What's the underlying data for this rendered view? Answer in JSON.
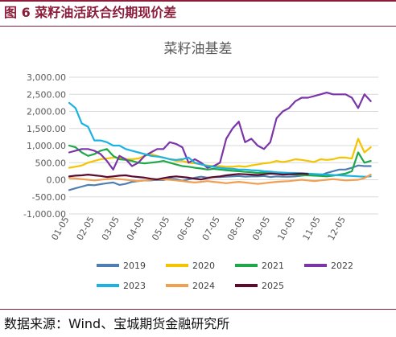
{
  "figure": {
    "title": "图 6 菜籽油活跃合约期现价差",
    "source": "数据来源：Wind、宝城期货金融研究所"
  },
  "colors": {
    "accent": "#8b1d3a",
    "gridline": "#d9d9d9",
    "axis_text": "#595959"
  },
  "chart_data": {
    "type": "line",
    "title": "菜籽油基差",
    "x_ticks": [
      "01-05",
      "02-05",
      "03-05",
      "04-05",
      "05-05",
      "06-05",
      "07-05",
      "08-05",
      "09-05",
      "10-05",
      "11-05",
      "12-05"
    ],
    "y_ticks": [
      "3,000.00",
      "2,500.00",
      "2,000.00",
      "1,500.00",
      "1,000.00",
      "500.00",
      "0.00",
      "-500.00",
      "-1,000.00"
    ],
    "ylim": [
      -1000,
      3000
    ],
    "xlim": [
      0,
      12.3
    ],
    "grid": "horizontal",
    "legend_position": "bottom",
    "series": [
      {
        "name": "2019",
        "color": "#4e7fb0",
        "x": [
          0,
          0.25,
          0.5,
          0.75,
          1,
          1.25,
          1.5,
          1.75,
          2,
          2.25,
          2.5,
          2.75,
          3,
          3.25,
          3.5,
          3.75,
          4,
          4.25,
          4.5,
          4.75,
          5,
          5.25,
          5.5,
          5.75,
          6,
          6.25,
          6.5,
          6.75,
          7,
          7.25,
          7.5,
          7.75,
          8,
          8.25,
          8.5,
          8.75,
          9,
          9.25,
          9.5,
          9.75,
          10,
          10.25,
          10.5,
          10.75,
          11,
          11.25,
          11.5,
          11.75,
          12
        ],
        "values": [
          -300,
          -250,
          -200,
          -150,
          -160,
          -130,
          -100,
          -80,
          -150,
          -120,
          -60,
          -40,
          -20,
          -20,
          0,
          -10,
          30,
          20,
          -30,
          10,
          60,
          90,
          60,
          80,
          80,
          90,
          100,
          110,
          90,
          100,
          100,
          110,
          80,
          100,
          90,
          90,
          100,
          120,
          140,
          150,
          130,
          200,
          250,
          300,
          300,
          350,
          420,
          400,
          400
        ]
      },
      {
        "name": "2020",
        "color": "#f5c400",
        "x": [
          0,
          0.25,
          0.5,
          0.75,
          1,
          1.25,
          1.5,
          1.75,
          2,
          2.25,
          2.5,
          2.75,
          3,
          3.25,
          3.5,
          3.75,
          4,
          4.25,
          4.5,
          4.75,
          5,
          5.25,
          5.5,
          5.75,
          6,
          6.25,
          6.5,
          6.75,
          7,
          7.25,
          7.5,
          7.75,
          8,
          8.25,
          8.5,
          8.75,
          9,
          9.25,
          9.5,
          9.75,
          10,
          10.25,
          10.5,
          10.75,
          11,
          11.25,
          11.5,
          11.75,
          12
        ],
        "values": [
          350,
          380,
          420,
          500,
          550,
          600,
          620,
          650,
          650,
          600,
          600,
          620,
          700,
          750,
          700,
          650,
          600,
          550,
          550,
          500,
          480,
          450,
          420,
          400,
          400,
          380,
          380,
          400,
          380,
          420,
          450,
          480,
          500,
          550,
          520,
          550,
          600,
          580,
          550,
          520,
          600,
          580,
          600,
          650,
          650,
          620,
          1200,
          800,
          950
        ]
      },
      {
        "name": "2021",
        "color": "#1fa84a",
        "x": [
          0,
          0.25,
          0.5,
          0.75,
          1,
          1.25,
          1.5,
          1.75,
          2,
          2.25,
          2.5,
          2.75,
          3,
          3.25,
          3.5,
          3.75,
          4,
          4.25,
          4.5,
          4.75,
          5,
          5.25,
          5.5,
          5.75,
          6,
          6.25,
          6.5,
          6.75,
          7,
          7.25,
          7.5,
          7.75,
          8,
          8.25,
          8.5,
          8.75,
          9,
          9.25,
          9.5,
          9.75,
          10,
          10.25,
          10.5,
          10.75,
          11,
          11.25,
          11.5,
          11.75,
          12
        ],
        "values": [
          1000,
          950,
          800,
          700,
          750,
          850,
          900,
          700,
          600,
          580,
          550,
          500,
          480,
          500,
          520,
          550,
          500,
          450,
          400,
          380,
          350,
          330,
          300,
          320,
          300,
          280,
          260,
          250,
          230,
          220,
          200,
          210,
          190,
          180,
          170,
          160,
          150,
          140,
          130,
          120,
          110,
          100,
          120,
          150,
          180,
          250,
          800,
          500,
          550
        ]
      },
      {
        "name": "2022",
        "color": "#7b35a8",
        "x": [
          0,
          0.25,
          0.5,
          0.75,
          1,
          1.25,
          1.5,
          1.75,
          2,
          2.25,
          2.5,
          2.75,
          3,
          3.25,
          3.5,
          3.75,
          4,
          4.25,
          4.5,
          4.75,
          5,
          5.25,
          5.5,
          5.75,
          6,
          6.25,
          6.5,
          6.75,
          7,
          7.25,
          7.5,
          7.75,
          8,
          8.25,
          8.5,
          8.75,
          9,
          9.25,
          9.5,
          9.75,
          10,
          10.25,
          10.5,
          10.75,
          11,
          11.25,
          11.5,
          11.75,
          12
        ],
        "values": [
          800,
          850,
          900,
          900,
          850,
          750,
          550,
          300,
          700,
          600,
          400,
          500,
          700,
          800,
          900,
          900,
          1100,
          1050,
          950,
          500,
          600,
          500,
          350,
          400,
          500,
          1200,
          1500,
          1700,
          1100,
          1200,
          1000,
          900,
          1100,
          1800,
          2000,
          2100,
          2300,
          2400,
          2400,
          2450,
          2500,
          2550,
          2500,
          2500,
          2500,
          2400,
          2100,
          2500,
          2300
        ]
      },
      {
        "name": "2023",
        "color": "#1ab2e0",
        "x": [
          0,
          0.25,
          0.5,
          0.75,
          1,
          1.25,
          1.5,
          1.75,
          2,
          2.25,
          2.5,
          2.75,
          3,
          3.25,
          3.5,
          3.75,
          4,
          4.25,
          4.5,
          4.75,
          5,
          5.25,
          5.5,
          5.75,
          6,
          6.25,
          6.5,
          6.75,
          7,
          7.25,
          7.5,
          7.75,
          8,
          8.25,
          8.5,
          8.75,
          9,
          9.25,
          9.5,
          9.75,
          10,
          10.25,
          10.5,
          10.75,
          11,
          11.25,
          11.5,
          11.75,
          12
        ],
        "values": [
          2250,
          2100,
          1650,
          1550,
          1150,
          1150,
          1100,
          1000,
          1000,
          900,
          850,
          800,
          750,
          700,
          680,
          650,
          600,
          580,
          600,
          650,
          500,
          450,
          400,
          380,
          350,
          330,
          320,
          300,
          300,
          280,
          270,
          250,
          240,
          220,
          210,
          200,
          200,
          190,
          180,
          170,
          160,
          150,
          140,
          130,
          120,
          110,
          100,
          90,
          100
        ]
      },
      {
        "name": "2024",
        "color": "#f0a050",
        "x": [
          0,
          0.25,
          0.5,
          0.75,
          1,
          1.25,
          1.5,
          1.75,
          2,
          2.25,
          2.5,
          2.75,
          3,
          3.25,
          3.5,
          3.75,
          4,
          4.25,
          4.5,
          4.75,
          5,
          5.25,
          5.5,
          5.75,
          6,
          6.25,
          6.5,
          6.75,
          7,
          7.25,
          7.5,
          7.75,
          8,
          8.25,
          8.5,
          8.75,
          9,
          9.25,
          9.5,
          9.75,
          10,
          10.25,
          10.5,
          10.75,
          11,
          11.25,
          11.5,
          11.75,
          12
        ],
        "values": [
          50,
          40,
          20,
          0,
          -20,
          0,
          20,
          40,
          20,
          0,
          -20,
          -40,
          -20,
          0,
          20,
          10,
          0,
          -20,
          -40,
          -60,
          -80,
          -60,
          -40,
          -60,
          -80,
          -100,
          -80,
          -60,
          -80,
          -100,
          -120,
          -100,
          -80,
          -60,
          -50,
          -40,
          -20,
          0,
          -20,
          -40,
          -20,
          0,
          20,
          0,
          -20,
          -10,
          0,
          50,
          150
        ]
      },
      {
        "name": "2025",
        "color": "#5c0a2e",
        "x": [
          0,
          0.25,
          0.5,
          0.75,
          1,
          1.25,
          1.5,
          1.75,
          2,
          2.25,
          2.5,
          2.75,
          3,
          3.25,
          3.5,
          3.75,
          4,
          4.25,
          4.5,
          4.75,
          5,
          5.25,
          5.5,
          5.75,
          6,
          6.25,
          6.5,
          6.75,
          7,
          7.25,
          7.5,
          7.75,
          8,
          8.25,
          8.5,
          8.75,
          9,
          9.25,
          9.5
        ],
        "values": [
          100,
          120,
          130,
          150,
          130,
          110,
          80,
          100,
          120,
          130,
          100,
          80,
          60,
          30,
          10,
          50,
          80,
          100,
          80,
          60,
          30,
          10,
          50,
          80,
          100,
          130,
          150,
          170,
          160,
          150,
          140,
          160,
          180,
          170,
          150,
          160,
          170,
          180,
          170
        ]
      }
    ]
  }
}
